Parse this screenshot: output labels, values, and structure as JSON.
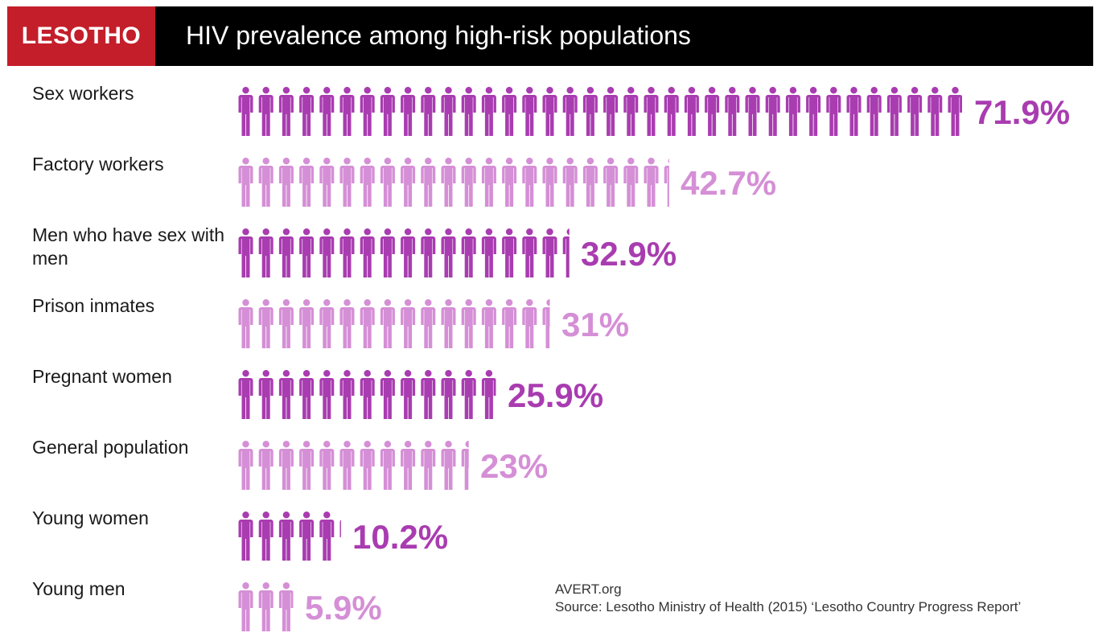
{
  "header": {
    "country": "LESOTHO",
    "title": "HIV prevalence among high-risk populations"
  },
  "colors": {
    "header_bg": "#000000",
    "tag_bg": "#c41e2a",
    "dark_purple": "#a93cb0",
    "light_purple": "#d58fd6"
  },
  "chart_data": {
    "type": "bar",
    "title": "HIV prevalence among high-risk populations",
    "unit": "%",
    "categories": [
      "Sex workers",
      "Factory workers",
      "Men who have sex with men",
      "Prison inmates",
      "Pregnant women",
      "General population",
      "Young women",
      "Young men"
    ],
    "values": [
      71.9,
      42.7,
      32.9,
      31,
      25.9,
      23,
      10.2,
      5.9
    ],
    "value_labels": [
      "71.9%",
      "42.7%",
      "32.9%",
      "31%",
      "25.9%",
      "23%",
      "10.2%",
      "5.9%"
    ],
    "colors": [
      "#a93cb0",
      "#d58fd6",
      "#a93cb0",
      "#d58fd6",
      "#a93cb0",
      "#d58fd6",
      "#a93cb0",
      "#d58fd6"
    ]
  },
  "footer": {
    "brand": "AVERT.org",
    "source": "Source: Lesotho Ministry of Health (2015) ‘Lesotho Country Progress Report’"
  }
}
